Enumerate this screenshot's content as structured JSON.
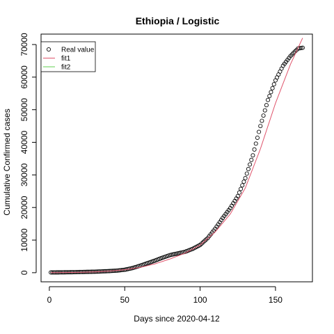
{
  "chart_data": {
    "type": "scatter",
    "title": "Ethiopia / Logistic",
    "xlabel": "Days since 2020-04-12",
    "ylabel": "Cumulative Confirmed cases",
    "xlim": [
      1,
      168
    ],
    "ylim": [
      0,
      72000
    ],
    "xticks": [
      0,
      50,
      100,
      150
    ],
    "yticks": [
      0,
      10000,
      20000,
      30000,
      40000,
      50000,
      60000,
      70000
    ],
    "legend": {
      "position": "top-left",
      "entries": [
        {
          "label": "Real value",
          "symbol": "circle",
          "color": "#000000"
        },
        {
          "label": "fit1",
          "symbol": "line",
          "color": "#DF536B"
        },
        {
          "label": "fit2",
          "symbol": "line",
          "color": "#61D04F"
        }
      ]
    },
    "series": [
      {
        "name": "Real value",
        "kind": "points",
        "color": "#000000",
        "x": [
          1,
          5,
          10,
          15,
          20,
          25,
          30,
          35,
          40,
          45,
          50,
          55,
          60,
          65,
          70,
          75,
          80,
          85,
          90,
          95,
          100,
          105,
          110,
          115,
          120,
          125,
          130,
          135,
          140,
          145,
          150,
          155,
          160,
          165,
          168
        ],
        "y": [
          80,
          90,
          120,
          150,
          200,
          250,
          300,
          400,
          500,
          650,
          900,
          1400,
          2100,
          2900,
          3700,
          4600,
          5400,
          5900,
          6400,
          7300,
          8500,
          10600,
          13500,
          16800,
          19800,
          23500,
          29000,
          36000,
          45000,
          53000,
          59000,
          63500,
          66500,
          68800,
          69000
        ]
      },
      {
        "name": "fit1",
        "kind": "line",
        "color": "#DF536B",
        "x": [
          1,
          10,
          20,
          30,
          40,
          50,
          60,
          70,
          80,
          90,
          100,
          110,
          120,
          130,
          140,
          150,
          160,
          168
        ],
        "y": [
          20,
          50,
          120,
          250,
          500,
          900,
          1600,
          2700,
          4200,
          6000,
          8500,
          12500,
          18000,
          26000,
          38000,
          52000,
          64000,
          72000
        ]
      }
    ]
  }
}
